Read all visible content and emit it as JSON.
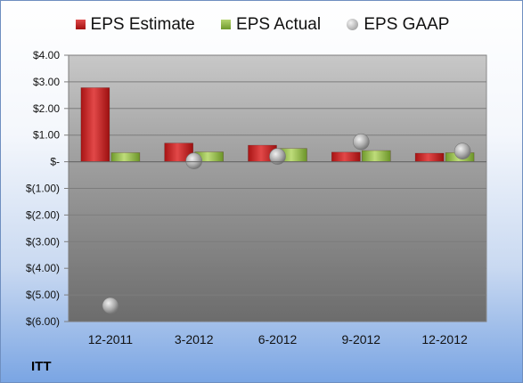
{
  "ticker": "ITT",
  "chart_data": {
    "type": "bar",
    "categories": [
      "12-2011",
      "3-2012",
      "6-2012",
      "9-2012",
      "12-2012"
    ],
    "series": [
      {
        "name": "EPS Estimate",
        "kind": "bar",
        "color": "#c42424",
        "values": [
          2.78,
          0.7,
          0.62,
          0.36,
          0.32
        ]
      },
      {
        "name": "EPS Actual",
        "kind": "bar",
        "color": "#8fb84a",
        "values": [
          0.34,
          0.37,
          0.5,
          0.42,
          0.34
        ]
      },
      {
        "name": "EPS GAAP",
        "kind": "marker",
        "color": "#a8a8a8",
        "values": [
          -5.4,
          0.03,
          0.2,
          0.75,
          0.4
        ]
      }
    ],
    "y_ticks": [
      "$4.00",
      "$3.00",
      "$2.00",
      "$1.00",
      "$-",
      "$(1.00)",
      "$(2.00)",
      "$(3.00)",
      "$(4.00)",
      "$(5.00)",
      "$(6.00)"
    ],
    "ylim": [
      -6,
      4
    ],
    "grid": true,
    "legend_position": "top"
  }
}
